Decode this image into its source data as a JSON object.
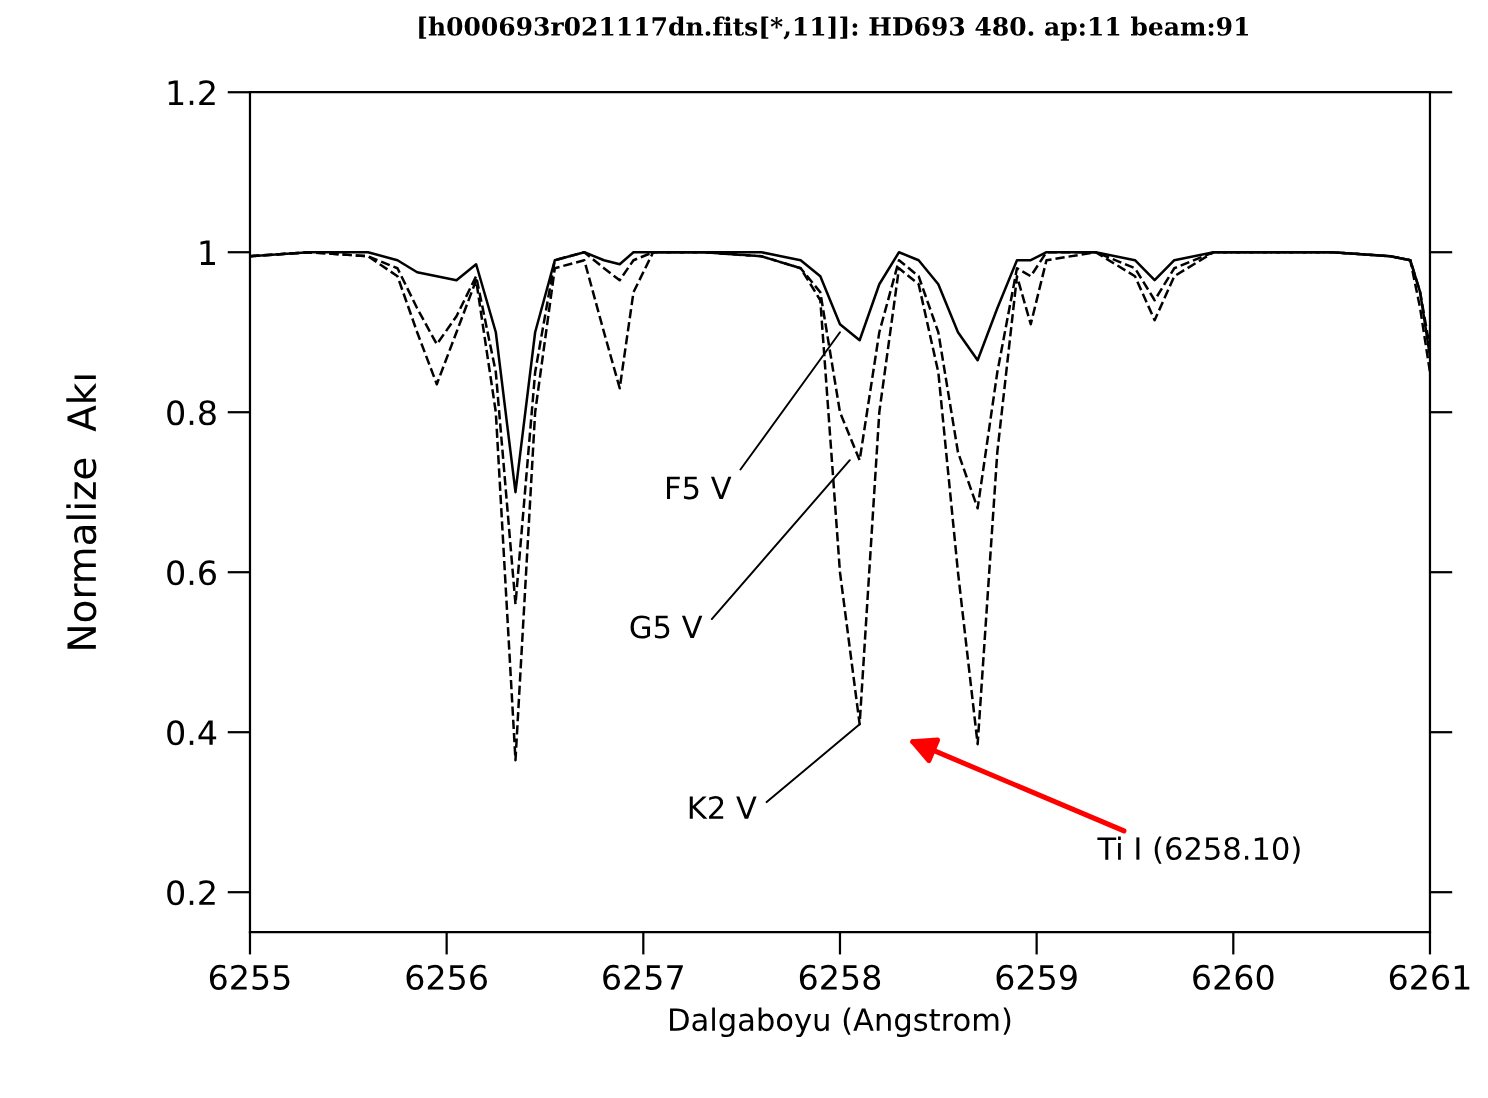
{
  "chart_data": {
    "type": "line",
    "title": "[h000693r021117dn.fits[*,11]]: HD693 480. ap:11 beam:91",
    "xlabel": "Dalgaboyu (Angstrom)",
    "ylabel": "Normalize  Akı",
    "x": [
      6255.0,
      6255.3,
      6255.6,
      6255.75,
      6255.85,
      6255.95,
      6256.05,
      6256.15,
      6256.25,
      6256.35,
      6256.45,
      6256.55,
      6256.7,
      6256.8,
      6256.88,
      6256.95,
      6257.05,
      6257.3,
      6257.6,
      6257.8,
      6257.9,
      6258.0,
      6258.1,
      6258.2,
      6258.3,
      6258.4,
      6258.5,
      6258.6,
      6258.7,
      6258.8,
      6258.9,
      6258.97,
      6259.05,
      6259.3,
      6259.5,
      6259.6,
      6259.7,
      6259.9,
      6260.2,
      6260.5,
      6260.8,
      6260.9,
      6260.95,
      6261.0
    ],
    "series": [
      {
        "color": "#000000",
        "line_style": "solid",
        "values": [
          0.995,
          1.0,
          1.0,
          0.99,
          0.975,
          0.97,
          0.965,
          0.985,
          0.9,
          0.7,
          0.9,
          0.99,
          1.0,
          0.99,
          0.985,
          1.0,
          1.0,
          1.0,
          1.0,
          0.99,
          0.97,
          0.91,
          0.89,
          0.96,
          1.0,
          0.99,
          0.96,
          0.9,
          0.865,
          0.93,
          0.99,
          0.99,
          1.0,
          1.0,
          0.99,
          0.965,
          0.99,
          1.0,
          1.0,
          1.0,
          0.995,
          0.99,
          0.95,
          0.87
        ]
      },
      {
        "color": "#000000",
        "line_style": "dashed",
        "values": [
          0.995,
          1.0,
          0.995,
          0.98,
          0.93,
          0.885,
          0.92,
          0.97,
          0.85,
          0.56,
          0.85,
          0.99,
          1.0,
          0.98,
          0.965,
          0.99,
          1.0,
          1.0,
          0.995,
          0.98,
          0.95,
          0.8,
          0.74,
          0.9,
          0.99,
          0.97,
          0.9,
          0.75,
          0.68,
          0.85,
          0.98,
          0.97,
          1.0,
          1.0,
          0.98,
          0.94,
          0.98,
          1.0,
          1.0,
          1.0,
          0.995,
          0.99,
          0.95,
          0.88
        ]
      },
      {
        "color": "#000000",
        "line_style": "dashed",
        "values": [
          0.995,
          1.0,
          0.995,
          0.97,
          0.9,
          0.835,
          0.9,
          0.965,
          0.8,
          0.365,
          0.8,
          0.98,
          0.99,
          0.9,
          0.83,
          0.95,
          1.0,
          1.0,
          0.995,
          0.98,
          0.94,
          0.6,
          0.41,
          0.8,
          0.98,
          0.96,
          0.85,
          0.6,
          0.385,
          0.75,
          0.97,
          0.91,
          0.99,
          1.0,
          0.97,
          0.915,
          0.97,
          1.0,
          1.0,
          1.0,
          0.995,
          0.99,
          0.93,
          0.85
        ]
      }
    ],
    "annotations": [
      {
        "text": "F5 V",
        "x": 6258.0,
        "y": 0.9
      },
      {
        "text": "G5 V",
        "x": 6258.05,
        "y": 0.74
      },
      {
        "text": "K2 V",
        "x": 6258.1,
        "y": 0.41
      },
      "Ti I (6258.10)"
    ],
    "xlim": [
      6255,
      6261
    ],
    "ylim": [
      0.15,
      1.2
    ],
    "xticks": [
      6255,
      6256,
      6257,
      6258,
      6259,
      6260,
      6261
    ],
    "yticks": [
      0.2,
      0.4,
      0.6,
      0.8,
      1,
      1.2
    ],
    "grid": false,
    "legend": false
  }
}
